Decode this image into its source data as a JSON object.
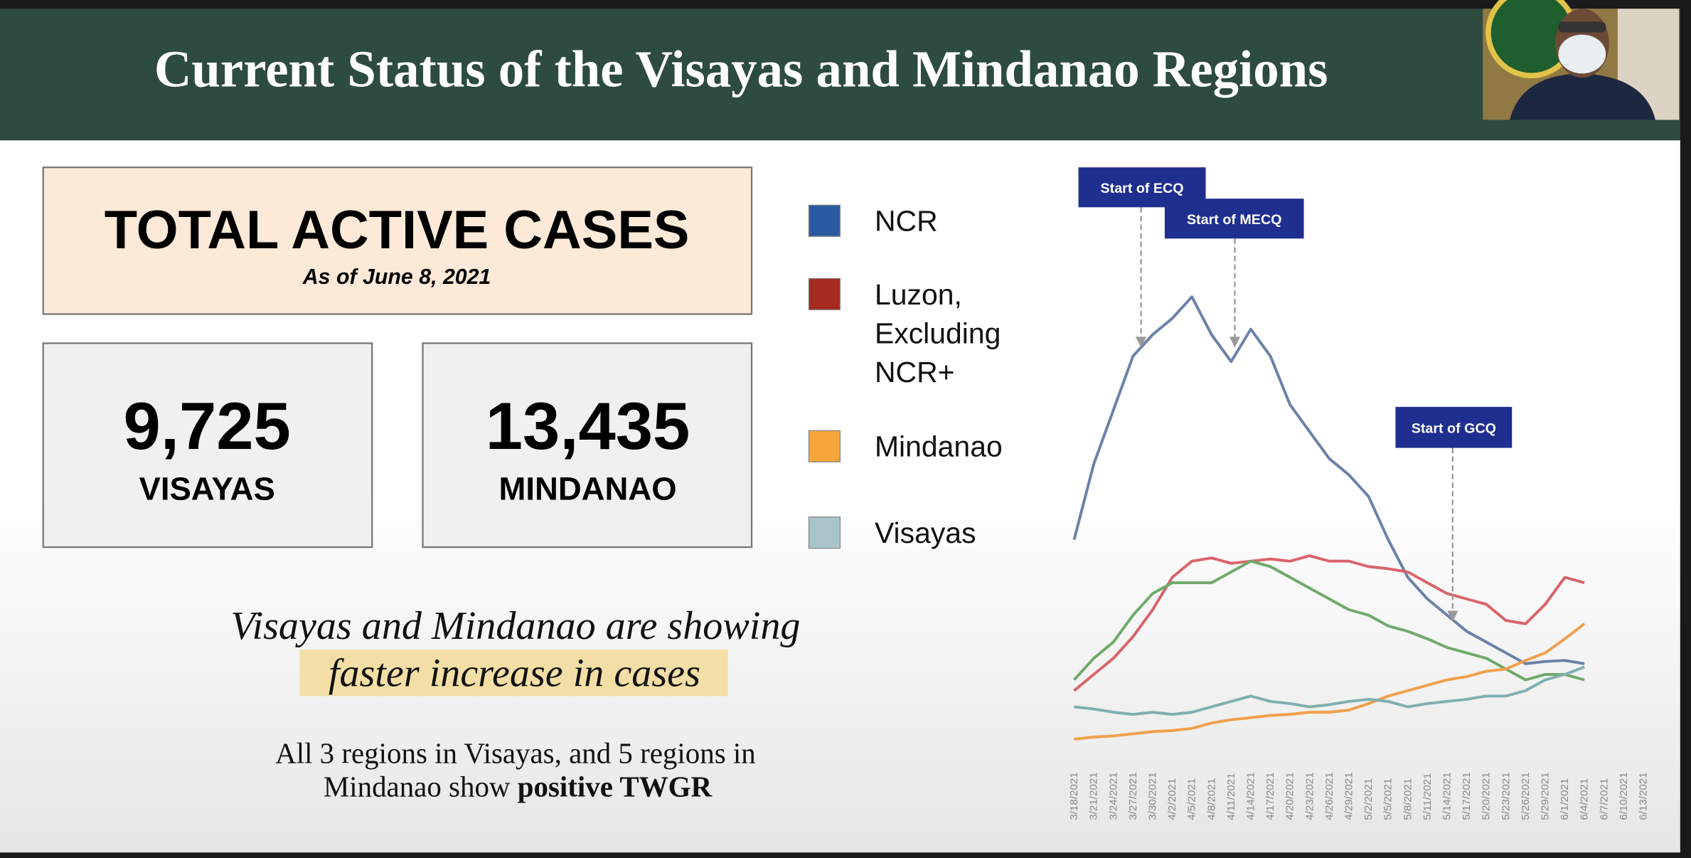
{
  "header": {
    "title": "Current Status of the Visayas and Mindanao Regions"
  },
  "summary": {
    "title": "TOTAL ACTIVE CASES",
    "subtitle": "As of June 8, 2021",
    "cards": [
      {
        "value": "9,725",
        "label": "VISAYAS"
      },
      {
        "value": "13,435",
        "label": "MINDANAO"
      }
    ]
  },
  "legend": [
    {
      "label": "NCR",
      "color": "#2a5aa0"
    },
    {
      "label": "Luzon,",
      "label2": "Excluding",
      "label3": "NCR+",
      "color": "#a52a1f"
    },
    {
      "label": "Mindanao",
      "color": "#f5a53a"
    },
    {
      "label": "Visayas",
      "color": "#a9c4cb"
    }
  ],
  "message": {
    "line1": "Visayas and Mindanao are showing",
    "highlight": "faster increase in cases",
    "body1": "All 3 regions in Visayas, and 5 regions in",
    "body2": "Mindanao show ",
    "body2_bold": "positive TWGR"
  },
  "chart_data": {
    "type": "line",
    "x": [
      "3/18/2021",
      "3/21/2021",
      "3/24/2021",
      "3/27/2021",
      "3/30/2021",
      "4/2/2021",
      "4/5/2021",
      "4/8/2021",
      "4/11/2021",
      "4/14/2021",
      "4/17/2021",
      "4/20/2021",
      "4/23/2021",
      "4/26/2021",
      "4/29/2021",
      "5/2/2021",
      "5/5/2021",
      "5/8/2021",
      "5/11/2021",
      "5/14/2021",
      "5/17/2021",
      "5/20/2021",
      "5/23/2021",
      "5/26/2021",
      "5/29/2021",
      "6/1/2021",
      "6/4/2021",
      "6/7/2021",
      "6/10/2021",
      "6/13/2021"
    ],
    "series": [
      {
        "color": "#6b82a8",
        "values": [
          200,
          270,
          320,
          370,
          390,
          405,
          425,
          390,
          365,
          395,
          370,
          325,
          300,
          275,
          260,
          240,
          200,
          165,
          145,
          130,
          115,
          105,
          95,
          85,
          87,
          88,
          85,
          null,
          null,
          null
        ]
      },
      {
        "color": "#d9646a",
        "values": [
          60,
          75,
          90,
          110,
          135,
          165,
          180,
          183,
          178,
          180,
          182,
          180,
          185,
          180,
          180,
          175,
          173,
          170,
          160,
          150,
          145,
          140,
          125,
          122,
          140,
          165,
          160,
          null,
          null,
          null
        ]
      },
      {
        "color": "#6faa6a",
        "values": [
          70,
          90,
          105,
          130,
          150,
          160,
          160,
          160,
          170,
          180,
          175,
          165,
          155,
          145,
          135,
          130,
          120,
          115,
          108,
          100,
          95,
          90,
          80,
          70,
          75,
          75,
          70,
          null,
          null,
          null
        ]
      },
      {
        "color": "#f0a04a",
        "values": [
          15,
          17,
          18,
          20,
          22,
          23,
          25,
          30,
          33,
          35,
          37,
          38,
          40,
          40,
          42,
          48,
          55,
          60,
          65,
          70,
          73,
          78,
          80,
          88,
          95,
          108,
          122,
          null,
          null,
          null
        ]
      },
      {
        "color": "#7fb0b0",
        "values": [
          45,
          43,
          40,
          38,
          40,
          38,
          40,
          45,
          50,
          55,
          50,
          48,
          45,
          47,
          50,
          52,
          50,
          45,
          48,
          50,
          52,
          55,
          55,
          60,
          70,
          75,
          82,
          null,
          null,
          null
        ]
      }
    ],
    "annotations": [
      {
        "label": "Start of ECQ"
      },
      {
        "label": "Start of MECQ"
      },
      {
        "label": "Start of GCQ"
      }
    ]
  }
}
